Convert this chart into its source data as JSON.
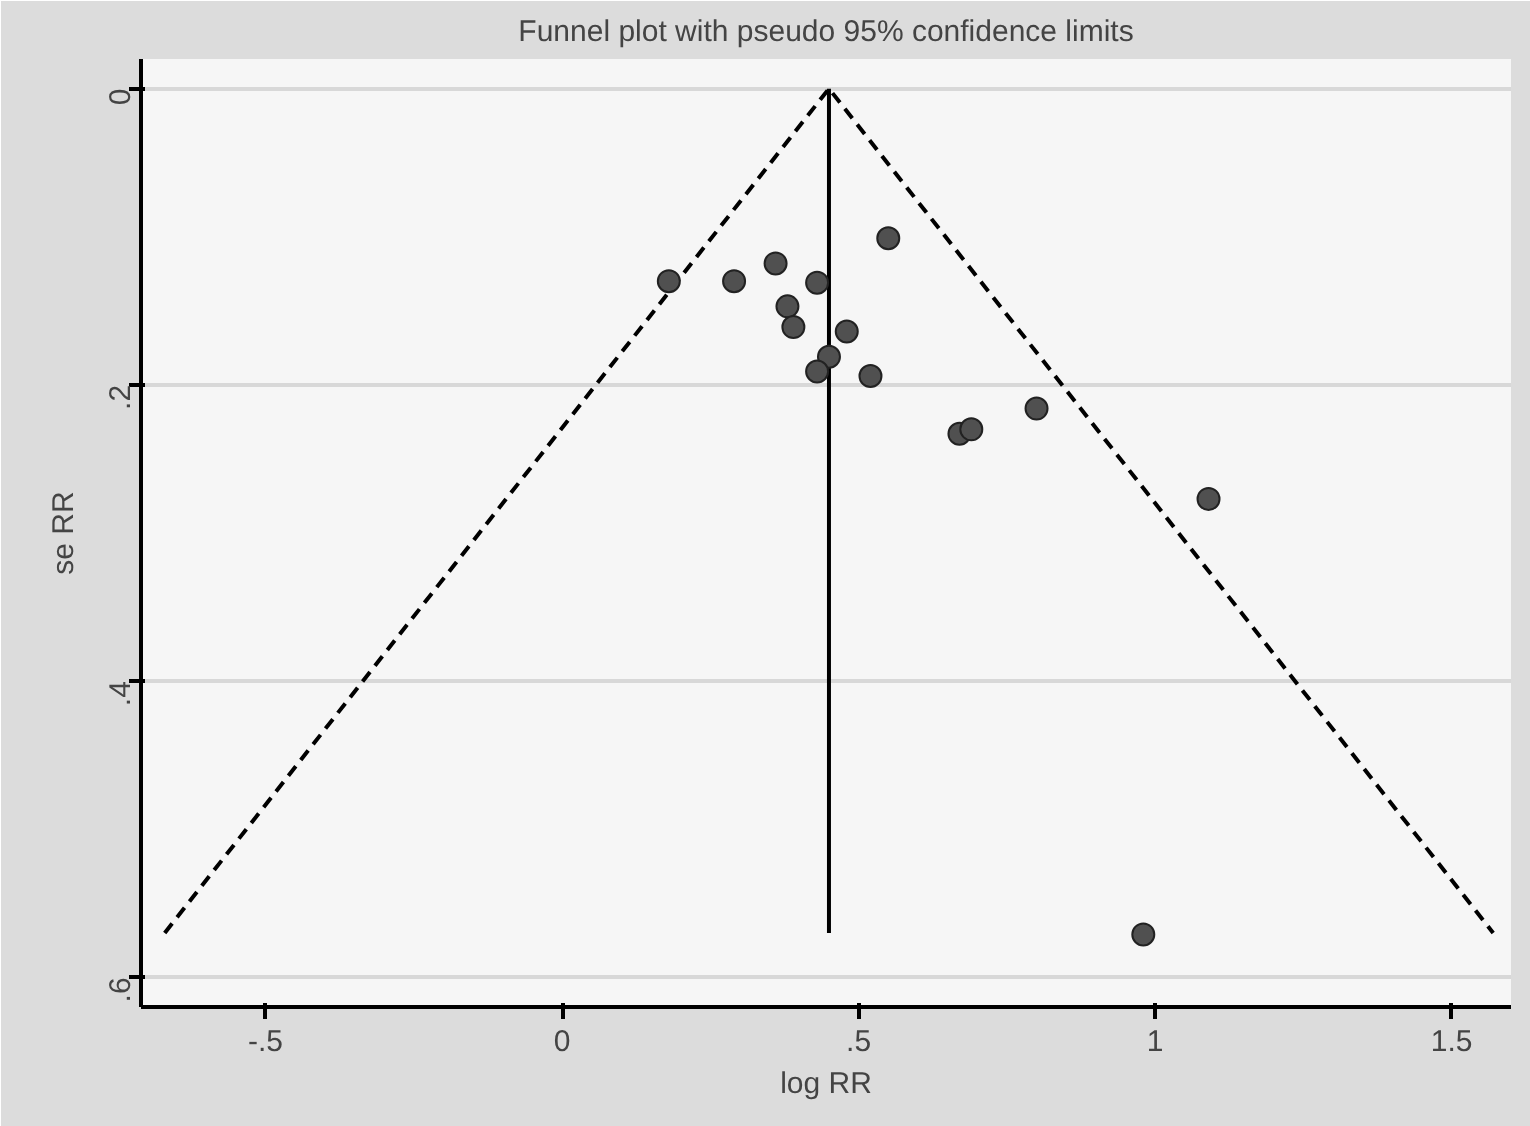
{
  "chart_data": {
    "type": "scatter",
    "title": "Funnel plot with pseudo 95% confidence limits",
    "xlabel": "log RR",
    "ylabel": "se RR",
    "xlim": [
      -0.71,
      1.6
    ],
    "ylim": [
      0.62,
      -0.02
    ],
    "xticks": [
      {
        "value": -0.5,
        "label": "-.5"
      },
      0,
      {
        "value": 0.5,
        "label": ".5"
      },
      1,
      1.5
    ],
    "yticks": [
      0,
      {
        "value": 0.2,
        "label": ".2"
      },
      {
        "value": 0.4,
        "label": ".4"
      },
      {
        "value": 0.6,
        "label": ".6"
      }
    ],
    "grid": "y",
    "marker": "circle",
    "series": [
      {
        "color": "#505050",
        "x": [
          0.18,
          0.29,
          0.36,
          0.43,
          0.38,
          0.39,
          0.48,
          0.45,
          0.43,
          0.55,
          0.52,
          0.67,
          0.69,
          0.8,
          1.09,
          0.98
        ],
        "values": [
          0.13,
          0.13,
          0.118,
          0.131,
          0.147,
          0.161,
          0.164,
          0.181,
          0.191,
          0.101,
          0.194,
          0.233,
          0.23,
          0.216,
          0.277,
          0.571
        ]
      },
      {
        "type": "line",
        "color": "#000000",
        "line_style": "dashed",
        "marker": "none",
        "x": [
          -0.67,
          0.45,
          1.57
        ],
        "values": [
          0.57,
          0,
          0.57
        ]
      },
      {
        "type": "line",
        "color": "#000000",
        "line_style": "solid",
        "marker": "none",
        "x": [
          0.45,
          0.45
        ],
        "values": [
          0,
          0.57
        ]
      }
    ]
  }
}
